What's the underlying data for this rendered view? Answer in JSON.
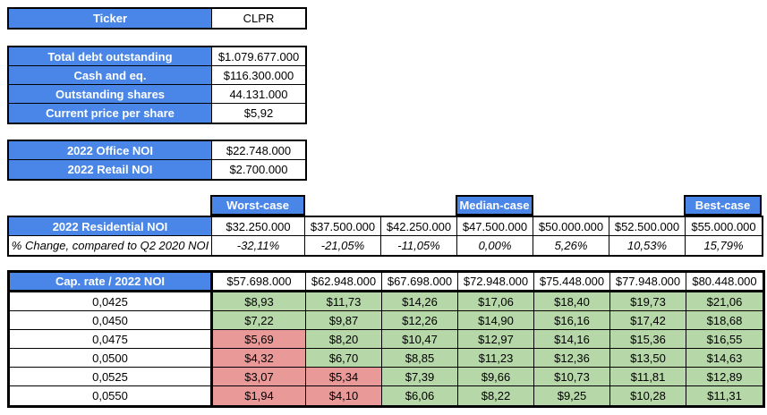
{
  "palette": {
    "header_blue": "#4a86e8",
    "positive_green": "#b6d7a8",
    "negative_red": "#ea9999",
    "grid_black": "#000000",
    "cell_white": "#ffffff"
  },
  "ticker": {
    "label": "Ticker",
    "value": "CLPR"
  },
  "balance": {
    "rows": [
      {
        "label": "Total debt outstanding",
        "value": "$1.079.677.000"
      },
      {
        "label": "Cash and eq.",
        "value": "$116.300.000"
      },
      {
        "label": "Outstanding shares",
        "value": "44.131.000"
      },
      {
        "label": "Current price per share",
        "value": "$5,92"
      }
    ]
  },
  "segment_noi": {
    "rows": [
      {
        "label": "2022 Office NOI",
        "value": "$22.748.000"
      },
      {
        "label": "2022 Retail NOI",
        "value": "$2.700.000"
      }
    ]
  },
  "scenarios": {
    "case_headers": {
      "worst": "Worst-case",
      "median": "Median-case",
      "best": "Best-case"
    },
    "residential_label": "2022 Residential NOI",
    "residential_values": [
      "$32.250.000",
      "$37.500.000",
      "$42.250.000",
      "$47.500.000",
      "$50.000.000",
      "$52.500.000",
      "$55.000.000"
    ],
    "pct_change_label": "% Change, compared to Q2 2020 NOI",
    "pct_change_values": [
      "-32,11%",
      "-21,05%",
      "-11,05%",
      "0,00%",
      "5,26%",
      "10,53%",
      "15,79%"
    ]
  },
  "sensitivity": {
    "corner_label": "Cap. rate / 2022 NOI",
    "noi_headers": [
      "$57.698.000",
      "$62.948.000",
      "$67.698.000",
      "$72.948.000",
      "$75.448.000",
      "$77.948.000",
      "$80.448.000"
    ],
    "rows": [
      {
        "cap_rate": "0,0425",
        "values": [
          "$8,93",
          "$11,73",
          "$14,26",
          "$17,06",
          "$18,40",
          "$19,73",
          "$21,06"
        ],
        "colors": [
          "green",
          "green",
          "green",
          "green",
          "green",
          "green",
          "green"
        ]
      },
      {
        "cap_rate": "0,0450",
        "values": [
          "$7,22",
          "$9,87",
          "$12,26",
          "$14,90",
          "$16,16",
          "$17,42",
          "$18,68"
        ],
        "colors": [
          "green",
          "green",
          "green",
          "green",
          "green",
          "green",
          "green"
        ]
      },
      {
        "cap_rate": "0,0475",
        "values": [
          "$5,69",
          "$8,20",
          "$10,47",
          "$12,97",
          "$14,16",
          "$15,36",
          "$16,55"
        ],
        "colors": [
          "red",
          "green",
          "green",
          "green",
          "green",
          "green",
          "green"
        ]
      },
      {
        "cap_rate": "0,0500",
        "values": [
          "$4,32",
          "$6,70",
          "$8,85",
          "$11,23",
          "$12,36",
          "$13,50",
          "$14,63"
        ],
        "colors": [
          "red",
          "green",
          "green",
          "green",
          "green",
          "green",
          "green"
        ]
      },
      {
        "cap_rate": "0,0525",
        "values": [
          "$3,07",
          "$5,34",
          "$7,39",
          "$9,66",
          "$10,73",
          "$11,81",
          "$12,89"
        ],
        "colors": [
          "red",
          "red",
          "green",
          "green",
          "green",
          "green",
          "green"
        ]
      },
      {
        "cap_rate": "0,0550",
        "values": [
          "$1,94",
          "$4,10",
          "$6,06",
          "$8,22",
          "$9,25",
          "$10,28",
          "$11,31"
        ],
        "colors": [
          "red",
          "red",
          "green",
          "green",
          "green",
          "green",
          "green"
        ]
      }
    ]
  }
}
